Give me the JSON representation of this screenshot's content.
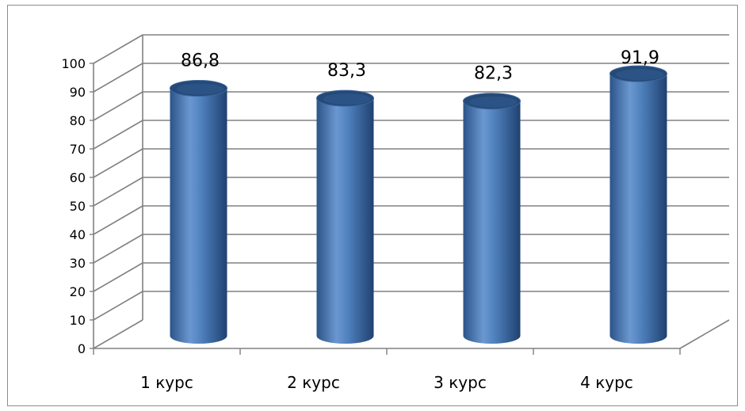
{
  "chart_data": {
    "type": "bar",
    "style": "3d-cylinder",
    "categories": [
      "1 курс",
      "2 курс",
      "3 курс",
      "4 курс"
    ],
    "values": [
      86.8,
      83.3,
      82.3,
      91.9
    ],
    "data_labels": [
      "86,8",
      "83,3",
      "82,3",
      "91,9"
    ],
    "y_ticks": [
      "0",
      "10",
      "20",
      "30",
      "40",
      "50",
      "60",
      "70",
      "80",
      "90",
      "100"
    ],
    "ylim": [
      0,
      100
    ],
    "grid": true,
    "legend": "none",
    "bar_color": "#4f81bd",
    "bar_dark": "#264a78",
    "grid_color": "#808080"
  }
}
